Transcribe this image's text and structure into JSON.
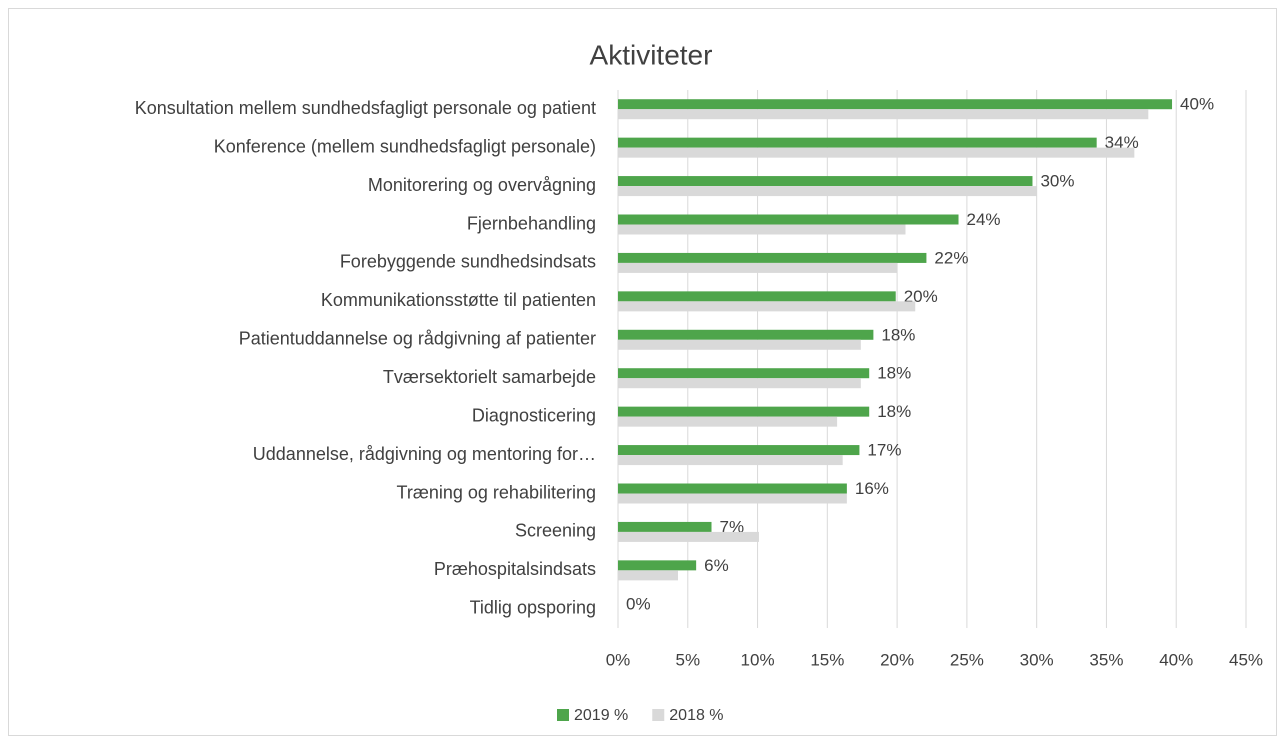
{
  "chart_data": {
    "type": "hbar",
    "title": "Aktiviteter",
    "categories": [
      "Konsultation mellem sundhedsfagligt personale og patient",
      "Konference (mellem sundhedsfagligt personale)",
      "Monitorering og overvågning",
      "Fjernbehandling",
      "Forebyggende sundhedsindsats",
      "Kommunikationsstøtte til patienten",
      "Patientuddannelse og rådgivning af patienter",
      "Tværsektorielt samarbejde",
      "Diagnosticering",
      "Uddannelse, rådgivning og mentoring for…",
      "Træning og rehabilitering",
      "Screening",
      "Præhospitalsindsats",
      "Tidlig opsporing"
    ],
    "series": [
      {
        "name": "2019 %",
        "color": "#4ea54b",
        "values": [
          39.7,
          34.3,
          29.7,
          24.4,
          22.1,
          19.9,
          18.3,
          18.0,
          18.0,
          17.3,
          16.4,
          6.7,
          5.6,
          0
        ],
        "value_labels": [
          "40%",
          "34%",
          "30%",
          "24%",
          "22%",
          "20%",
          "18%",
          "18%",
          "18%",
          "17%",
          "16%",
          "7%",
          "6%",
          "0%"
        ]
      },
      {
        "name": "2018 %",
        "color": "#d9d9d9",
        "values": [
          38,
          37,
          30,
          20.6,
          20,
          21.3,
          17.4,
          17.4,
          15.7,
          16.1,
          16.4,
          10.1,
          4.3,
          0
        ]
      }
    ],
    "xlim": [
      0,
      45
    ],
    "xticks": [
      {
        "value": 0,
        "label": "0%"
      },
      {
        "value": 5,
        "label": "5%"
      },
      {
        "value": 10,
        "label": "10%"
      },
      {
        "value": 15,
        "label": "15%"
      },
      {
        "value": 20,
        "label": "20%"
      },
      {
        "value": 25,
        "label": "25%"
      },
      {
        "value": 30,
        "label": "30%"
      },
      {
        "value": 35,
        "label": "35%"
      },
      {
        "value": 40,
        "label": "40%"
      },
      {
        "value": 45,
        "label": "45%"
      }
    ],
    "grid": true,
    "legend": "bottom"
  }
}
